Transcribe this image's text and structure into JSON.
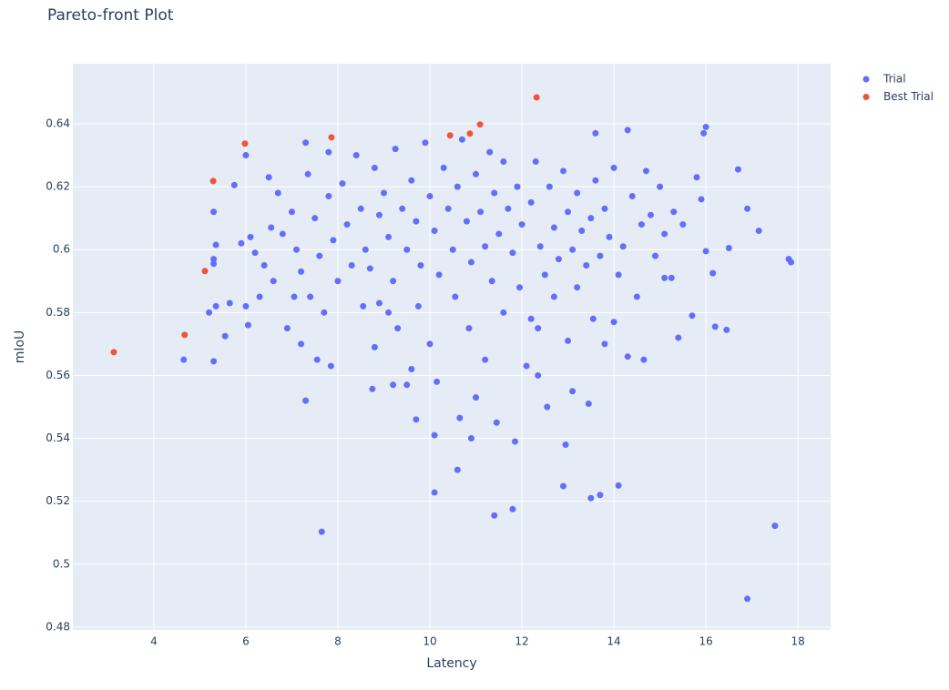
{
  "chart_data": {
    "type": "scatter",
    "title": "Pareto-front Plot",
    "x_label": "Latency",
    "y_label": "mIoU",
    "xlim": [
      2.24,
      18.71
    ],
    "ylim": [
      0.4791,
      0.6591
    ],
    "xticks": [
      4,
      6,
      8,
      10,
      12,
      14,
      16,
      18
    ],
    "yticks": [
      0.48,
      0.5,
      0.52,
      0.54,
      0.56,
      0.58,
      0.6,
      0.62,
      0.64
    ],
    "grid": true,
    "legend": "outside-right",
    "series": [
      {
        "name": "Trial",
        "color": "#636efa",
        "x": [
          4.65,
          5.3,
          7.65,
          17.5,
          16.9,
          17.85,
          17.8,
          17.15,
          16.9,
          16.7,
          16.0,
          15.95,
          14.1,
          13.7,
          13.5,
          12.9,
          11.8,
          11.4,
          10.1,
          10.6,
          12.95,
          11.85,
          10.9,
          10.1,
          9.7,
          10.65,
          11.45,
          12.55,
          13.45,
          7.3,
          8.75,
          9.5,
          13.1,
          12.35,
          14.3,
          14.65,
          15.4,
          15.7,
          16.2,
          16.45,
          16.5,
          16.0,
          16.15,
          15.1,
          15.25,
          5.2,
          5.35,
          5.55,
          5.65,
          5.75,
          5.9,
          6.0,
          6.05,
          6.0,
          5.3,
          5.35,
          5.3,
          5.3,
          6.5,
          6.7,
          6.8,
          6.4,
          6.6,
          6.3,
          6.9,
          7.0,
          7.1,
          7.2,
          7.3,
          7.35,
          7.5,
          7.6,
          7.4,
          7.2,
          7.55,
          7.8,
          7.8,
          7.9,
          8.0,
          7.7,
          7.85,
          8.1,
          8.2,
          8.3,
          8.4,
          8.5,
          8.6,
          8.55,
          8.8,
          8.9,
          8.7,
          8.8,
          9.0,
          9.1,
          9.2,
          9.1,
          9.25,
          9.4,
          9.5,
          9.3,
          9.6,
          9.7,
          9.8,
          9.9,
          9.75,
          9.6,
          10.0,
          10.1,
          10.2,
          10.3,
          10.4,
          10.0,
          10.15,
          10.5,
          10.6,
          10.7,
          10.55,
          10.8,
          10.9,
          11.0,
          10.85,
          11.1,
          11.2,
          11.3,
          11.4,
          11.5,
          11.35,
          11.2,
          11.6,
          11.7,
          11.6,
          11.8,
          11.9,
          12.0,
          11.95,
          12.1,
          12.2,
          12.3,
          12.4,
          12.5,
          12.35,
          12.6,
          12.7,
          12.8,
          12.7,
          12.9,
          13.0,
          13.1,
          13.0,
          13.2,
          13.3,
          13.2,
          13.4,
          13.5,
          13.6,
          13.6,
          13.7,
          13.55,
          13.8,
          13.9,
          14.0,
          14.1,
          14.3,
          14.4,
          14.2,
          14.5,
          14.6,
          14.7,
          14.8,
          14.9,
          15.0,
          15.1,
          15.3,
          15.5,
          15.8,
          15.9,
          14.0,
          13.8,
          12.2,
          11.0,
          9.2,
          8.9,
          6.2,
          6.55,
          7.05,
          6.1
        ],
        "values": [
          0.565,
          0.5645,
          0.5103,
          0.5122,
          0.489,
          0.596,
          0.597,
          0.606,
          0.613,
          0.6255,
          0.639,
          0.637,
          0.525,
          0.522,
          0.521,
          0.5248,
          0.5175,
          0.5155,
          0.5228,
          0.53,
          0.538,
          0.539,
          0.54,
          0.541,
          0.546,
          0.5465,
          0.545,
          0.55,
          0.551,
          0.552,
          0.5557,
          0.557,
          0.555,
          0.56,
          0.566,
          0.565,
          0.572,
          0.579,
          0.5755,
          0.5745,
          0.6005,
          0.5995,
          0.5925,
          0.591,
          0.591,
          0.58,
          0.582,
          0.5725,
          0.583,
          0.6205,
          0.602,
          0.582,
          0.576,
          0.63,
          0.612,
          0.6015,
          0.597,
          0.5955,
          0.623,
          0.618,
          0.605,
          0.595,
          0.59,
          0.585,
          0.575,
          0.612,
          0.6,
          0.593,
          0.634,
          0.624,
          0.61,
          0.598,
          0.585,
          0.57,
          0.565,
          0.631,
          0.617,
          0.603,
          0.59,
          0.58,
          0.563,
          0.621,
          0.608,
          0.595,
          0.63,
          0.613,
          0.6,
          0.582,
          0.626,
          0.611,
          0.594,
          0.569,
          0.618,
          0.604,
          0.59,
          0.58,
          0.632,
          0.613,
          0.6,
          0.575,
          0.622,
          0.609,
          0.595,
          0.634,
          0.582,
          0.562,
          0.617,
          0.606,
          0.592,
          0.626,
          0.613,
          0.57,
          0.558,
          0.6,
          0.62,
          0.635,
          0.585,
          0.609,
          0.596,
          0.624,
          0.575,
          0.612,
          0.601,
          0.631,
          0.618,
          0.605,
          0.59,
          0.565,
          0.628,
          0.613,
          0.58,
          0.599,
          0.62,
          0.608,
          0.588,
          0.563,
          0.615,
          0.628,
          0.601,
          0.592,
          0.575,
          0.62,
          0.607,
          0.597,
          0.585,
          0.625,
          0.612,
          0.6,
          0.571,
          0.618,
          0.606,
          0.588,
          0.595,
          0.61,
          0.637,
          0.622,
          0.598,
          0.578,
          0.613,
          0.604,
          0.626,
          0.592,
          0.638,
          0.617,
          0.601,
          0.585,
          0.608,
          0.625,
          0.611,
          0.598,
          0.62,
          0.605,
          0.612,
          0.608,
          0.623,
          0.616,
          0.577,
          0.57,
          0.578,
          0.553,
          0.557,
          0.583,
          0.599,
          0.607,
          0.585,
          0.604
        ]
      },
      {
        "name": "Best Trial",
        "color": "#ef553b",
        "x": [
          3.13,
          4.67,
          5.11,
          5.29,
          5.98,
          7.86,
          10.44,
          10.87,
          11.09,
          12.32
        ],
        "values": [
          0.5674,
          0.5729,
          0.5932,
          0.6218,
          0.6337,
          0.6357,
          0.6363,
          0.6369,
          0.6398,
          0.6484
        ]
      }
    ]
  }
}
